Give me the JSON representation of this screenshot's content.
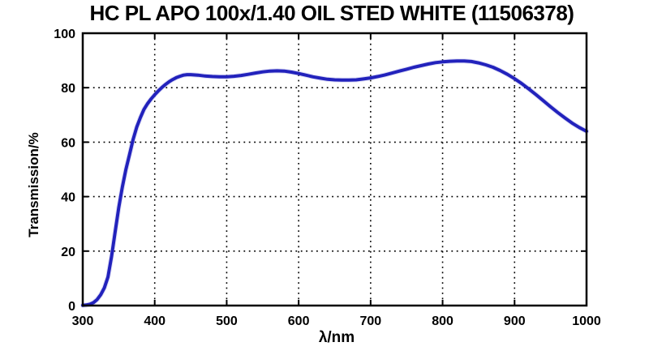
{
  "chart_data": {
    "type": "line",
    "title": "HC PL APO 100x/1.40 OIL STED WHITE (11506378)",
    "xlabel": "λ/nm",
    "ylabel": "Transmission/%",
    "xlim": [
      300,
      1000
    ],
    "ylim": [
      0,
      100
    ],
    "xticks": [
      300,
      400,
      500,
      600,
      700,
      800,
      900,
      1000
    ],
    "yticks": [
      0,
      20,
      40,
      60,
      80,
      100
    ],
    "grid": "dotted",
    "legend": "none",
    "series": [
      {
        "name": "transmission",
        "color": "#2222bc",
        "x": [
          300,
          305,
          310,
          315,
          320,
          325,
          330,
          335,
          340,
          345,
          350,
          355,
          360,
          365,
          370,
          375,
          380,
          385,
          390,
          395,
          400,
          405,
          410,
          415,
          420,
          425,
          430,
          435,
          440,
          445,
          450,
          460,
          470,
          480,
          490,
          500,
          510,
          520,
          530,
          540,
          550,
          560,
          570,
          580,
          590,
          600,
          610,
          620,
          630,
          640,
          650,
          660,
          670,
          680,
          690,
          700,
          710,
          720,
          730,
          740,
          750,
          760,
          770,
          780,
          790,
          800,
          810,
          820,
          830,
          840,
          850,
          860,
          870,
          880,
          890,
          900,
          910,
          920,
          930,
          940,
          950,
          960,
          970,
          980,
          990,
          1000
        ],
        "y": [
          0.1,
          0.2,
          0.5,
          1.1,
          2.2,
          4,
          6.5,
          10.5,
          18,
          27,
          36,
          43.5,
          50,
          55.5,
          61,
          65.5,
          69,
          72,
          74.1,
          75.9,
          77.4,
          78.8,
          80.1,
          81.2,
          82.2,
          83,
          83.7,
          84.2,
          84.6,
          84.8,
          84.8,
          84.6,
          84.3,
          84.1,
          84,
          84,
          84.2,
          84.5,
          84.9,
          85.4,
          85.8,
          86.1,
          86.2,
          86.1,
          85.7,
          85.2,
          84.6,
          84,
          83.5,
          83.1,
          82.9,
          82.8,
          82.8,
          82.9,
          83.2,
          83.6,
          84.1,
          84.7,
          85.4,
          86.1,
          86.8,
          87.5,
          88.1,
          88.7,
          89.2,
          89.5,
          89.7,
          89.8,
          89.8,
          89.6,
          89.1,
          88.4,
          87.5,
          86.3,
          84.9,
          83.3,
          81.5,
          79.5,
          77.4,
          75.2,
          73,
          70.9,
          68.9,
          67,
          65.4,
          64
        ]
      }
    ]
  },
  "colors": {
    "background": "#ffffff",
    "axis": "#000000",
    "text": "#000000",
    "curve": "#2222bc",
    "curve_halo": "#8e8ee0"
  }
}
